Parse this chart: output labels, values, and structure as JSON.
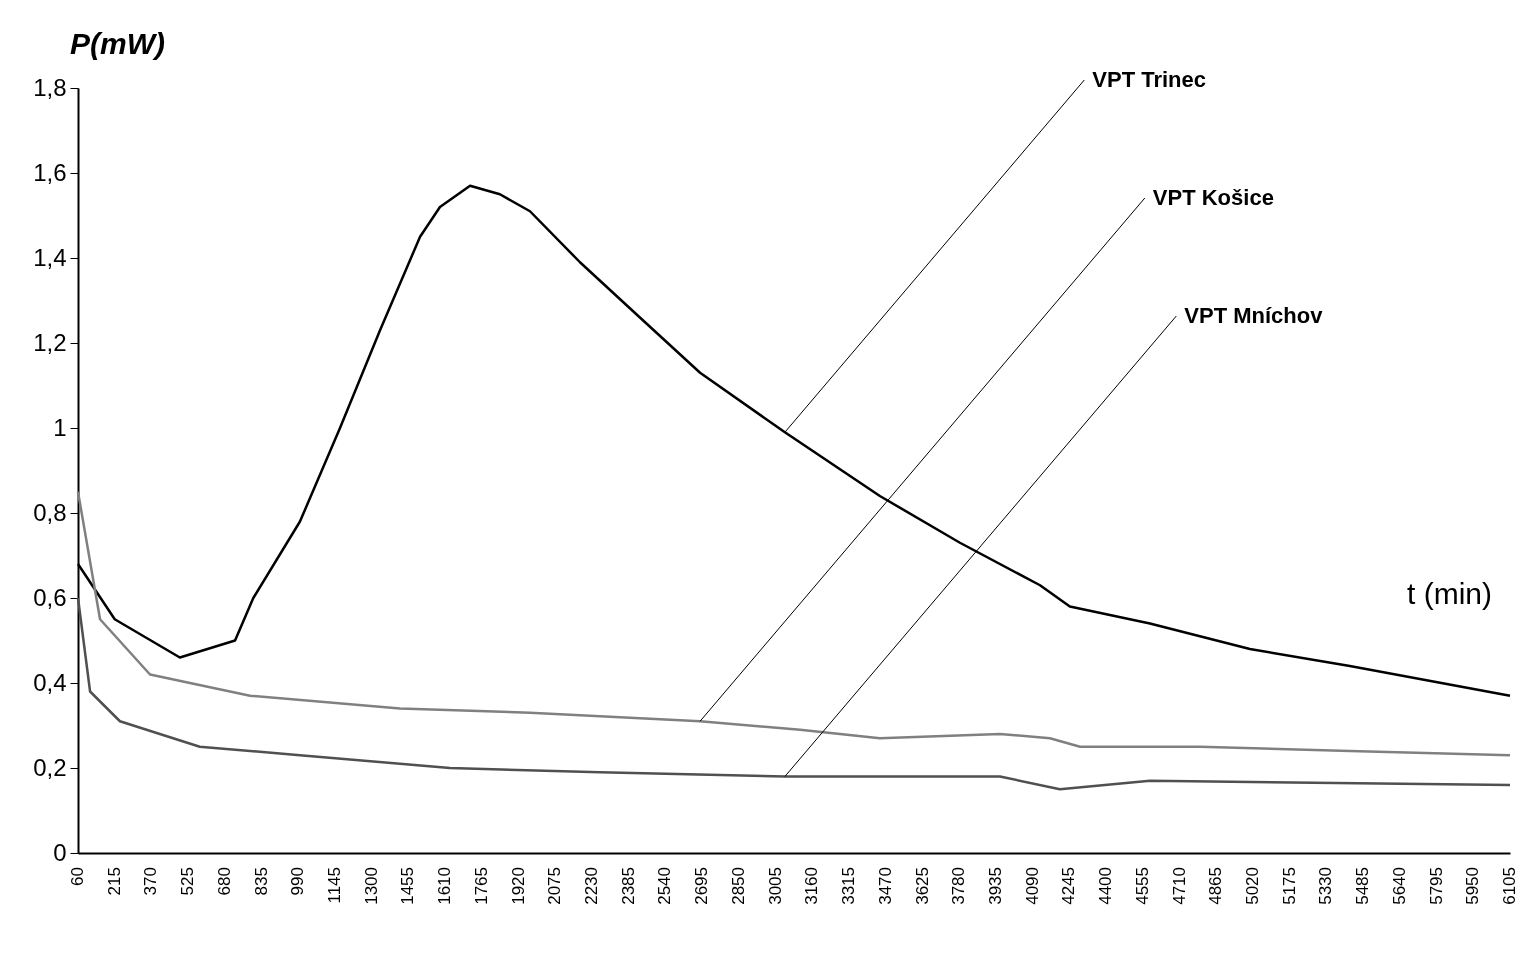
{
  "chart_data": {
    "type": "line",
    "xlabel": "t (min)",
    "ylabel": "P(mW)",
    "xlim": [
      60,
      6105
    ],
    "xticks": [
      60,
      215,
      370,
      525,
      680,
      835,
      990,
      1145,
      1300,
      1455,
      1610,
      1765,
      1920,
      2075,
      2230,
      2385,
      2540,
      2695,
      2850,
      3005,
      3160,
      3315,
      3470,
      3625,
      3780,
      3935,
      4090,
      4245,
      4400,
      4555,
      4710,
      4865,
      5020,
      5175,
      5330,
      5485,
      5640,
      5795,
      5950,
      6105
    ],
    "ylim": [
      0,
      1.8
    ],
    "yticks": [
      0,
      {
        "value": 0.2,
        "label": "0,2"
      },
      {
        "value": 0.4,
        "label": "0,4"
      },
      {
        "value": 0.6,
        "label": "0,6"
      },
      {
        "value": 0.8,
        "label": "0,8"
      },
      1,
      {
        "value": 1.2,
        "label": "1,2"
      },
      {
        "value": 1.4,
        "label": "1,4"
      },
      {
        "value": 1.6,
        "label": "1,6"
      },
      {
        "value": 1.8,
        "label": "1,8"
      }
    ],
    "grid": false,
    "legend": false,
    "marker": "none",
    "line_style": "solid",
    "series": [
      {
        "name": "VPT Trinec",
        "color": "#000000",
        "x": [
          60,
          215,
          490,
          723,
          800,
          997,
          1166,
          1335,
          1504,
          1588,
          1715,
          1841,
          1968,
          2179,
          2432,
          2686,
          3044,
          3445,
          3783,
          4121,
          4247,
          4585,
          5007,
          5429,
          6105
        ],
        "values": [
          0.68,
          0.55,
          0.46,
          0.5,
          0.6,
          0.78,
          1.0,
          1.23,
          1.45,
          1.52,
          1.57,
          1.55,
          1.51,
          1.39,
          1.26,
          1.13,
          0.99,
          0.84,
          0.73,
          0.63,
          0.58,
          0.54,
          0.48,
          0.44,
          0.37
        ]
      },
      {
        "name": "VPT Košice",
        "color": "#808080",
        "x": [
          60,
          153,
          364,
          786,
          1419,
          1968,
          2686,
          3108,
          3445,
          3952,
          4163,
          4290,
          4796,
          5429,
          6105
        ],
        "values": [
          0.85,
          0.55,
          0.42,
          0.37,
          0.34,
          0.33,
          0.31,
          0.29,
          0.27,
          0.28,
          0.27,
          0.25,
          0.25,
          0.24,
          0.23
        ]
      },
      {
        "name": "VPT Mníchov",
        "color": "#505050",
        "x": [
          60,
          111,
          237,
          574,
          997,
          1630,
          2263,
          3044,
          3952,
          4205,
          4585,
          6105
        ],
        "values": [
          0.6,
          0.38,
          0.31,
          0.25,
          0.23,
          0.2,
          0.19,
          0.18,
          0.18,
          0.15,
          0.17,
          0.16
        ]
      }
    ]
  }
}
